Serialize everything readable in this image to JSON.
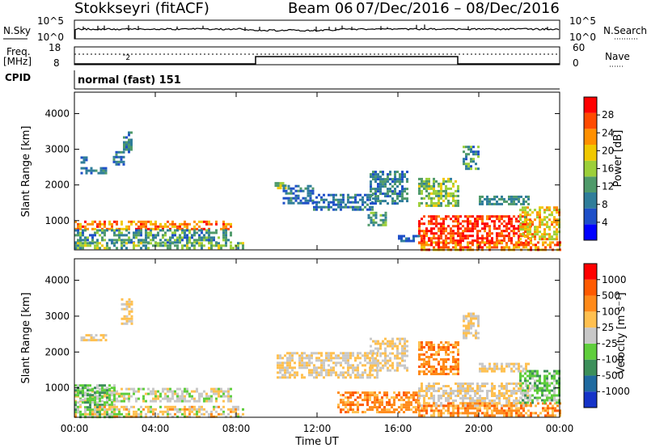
{
  "header": {
    "station": "Stokkseyri (fitACF)",
    "beam": "Beam 06",
    "date_range": "07/Dec/2016 – 08/Dec/2016"
  },
  "mode_label": "normal (fast) 151",
  "noise_panel": {
    "left_label": "N.Sky",
    "right_label": "N.Search",
    "left_ticks": [
      "10^5",
      "10^0"
    ],
    "right_ticks": [
      "10^5",
      "10^0"
    ]
  },
  "freq_panel": {
    "label_line1": "Freq.",
    "label_line2": "[MHz]",
    "cpid_label": "CPID",
    "right_label": "Nave",
    "left_ticks": [
      "18",
      "8"
    ],
    "right_ticks": [
      "60",
      "0"
    ]
  },
  "colors": {
    "power": [
      "#0000ff",
      "#1e4fc8",
      "#2f7d9a",
      "#4f9a6a",
      "#9ccf3a",
      "#f0c800",
      "#ff9000",
      "#ff4a00",
      "#ff0000"
    ],
    "velocity": [
      "#1533c8",
      "#1f6aa0",
      "#3c8f5a",
      "#5fce3c",
      "#c8c8c8",
      "#ffc050",
      "#ff8a1a",
      "#ff5a00",
      "#ff0000"
    ]
  },
  "chart_data": [
    {
      "type": "heatmap",
      "name": "power",
      "ylabel": "Slant Range [km]",
      "colorbar_label": "Power [dB]",
      "colorbar_ticks": [
        "4",
        "8",
        "12",
        "16",
        "20",
        "24",
        "28"
      ],
      "colorbar_range": [
        0,
        32
      ],
      "x_ticks": [
        "00:00",
        "04:00",
        "08:00",
        "12:00",
        "16:00",
        "20:00",
        "00:00"
      ],
      "xlim_hours": [
        0,
        24
      ],
      "y_ticks": [
        "1000",
        "2000",
        "3000",
        "4000"
      ],
      "ylim_km": [
        180,
        4600
      ],
      "regions": [
        {
          "t0": 0.0,
          "t1": 7.7,
          "r0": 760,
          "r1": 1000,
          "v0": 18,
          "v1": 30
        },
        {
          "t0": 0.0,
          "t1": 7.8,
          "r0": 400,
          "r1": 760,
          "v0": 6,
          "v1": 16
        },
        {
          "t0": 0.0,
          "t1": 8.3,
          "r0": 200,
          "r1": 400,
          "v0": 8,
          "v1": 20
        },
        {
          "t0": 0.3,
          "t1": 1.6,
          "r0": 2350,
          "r1": 2500,
          "v0": 6,
          "v1": 12
        },
        {
          "t0": 0.3,
          "t1": 0.6,
          "r0": 2600,
          "r1": 2800,
          "v0": 5,
          "v1": 10
        },
        {
          "t0": 1.9,
          "t1": 2.4,
          "r0": 2550,
          "r1": 2950,
          "v0": 6,
          "v1": 12
        },
        {
          "t0": 2.4,
          "t1": 2.8,
          "r0": 2900,
          "r1": 3500,
          "v0": 6,
          "v1": 13
        },
        {
          "t0": 9.9,
          "t1": 10.4,
          "r0": 1900,
          "r1": 2150,
          "v0": 10,
          "v1": 20
        },
        {
          "t0": 10.3,
          "t1": 11.8,
          "r0": 1500,
          "r1": 2000,
          "v0": 4,
          "v1": 12
        },
        {
          "t0": 11.8,
          "t1": 14.8,
          "r0": 1300,
          "r1": 1750,
          "v0": 4,
          "v1": 12
        },
        {
          "t0": 14.6,
          "t1": 16.5,
          "r0": 1500,
          "r1": 2400,
          "v0": 5,
          "v1": 14
        },
        {
          "t0": 14.5,
          "t1": 15.4,
          "r0": 900,
          "r1": 1250,
          "v0": 8,
          "v1": 16
        },
        {
          "t0": 17.0,
          "t1": 19.0,
          "r0": 1400,
          "r1": 2200,
          "v0": 10,
          "v1": 20
        },
        {
          "t0": 17.0,
          "t1": 22.6,
          "r0": 400,
          "r1": 1150,
          "v0": 24,
          "v1": 32
        },
        {
          "t0": 17.0,
          "t1": 24.0,
          "r0": 200,
          "r1": 420,
          "v0": 18,
          "v1": 30
        },
        {
          "t0": 20.0,
          "t1": 22.5,
          "r0": 1450,
          "r1": 1700,
          "v0": 8,
          "v1": 14
        },
        {
          "t0": 22.0,
          "t1": 24.0,
          "r0": 500,
          "r1": 1400,
          "v0": 14,
          "v1": 26
        },
        {
          "t0": 16.0,
          "t1": 17.0,
          "r0": 400,
          "r1": 600,
          "v0": 4,
          "v1": 10
        },
        {
          "t0": 19.2,
          "t1": 20.0,
          "r0": 2400,
          "r1": 3100,
          "v0": 6,
          "v1": 16
        }
      ]
    },
    {
      "type": "heatmap",
      "name": "velocity",
      "ylabel": "Slant Range [km]",
      "colorbar_label": "Velocity [m s⁻¹]",
      "colorbar_ticks": [
        "-1000",
        "-500",
        "-100",
        "-25",
        "25",
        "100",
        "500",
        "1000"
      ],
      "x_ticks": [
        "00:00",
        "04:00",
        "08:00",
        "12:00",
        "16:00",
        "20:00",
        "00:00"
      ],
      "xlim_hours": [
        0,
        24
      ],
      "xlabel": "Time UT",
      "y_ticks": [
        "1000",
        "2000",
        "3000",
        "4000"
      ],
      "ylim_km": [
        180,
        4600
      ],
      "regions": [
        {
          "t0": 0.0,
          "t1": 7.7,
          "r0": 600,
          "r1": 1000,
          "v0": 3,
          "v1": 5
        },
        {
          "t0": 0.0,
          "t1": 2.0,
          "r0": 200,
          "r1": 1100,
          "v0": 2,
          "v1": 4
        },
        {
          "t0": 0.0,
          "t1": 8.3,
          "r0": 200,
          "r1": 500,
          "v0": 3,
          "v1": 6
        },
        {
          "t0": 0.3,
          "t1": 1.6,
          "r0": 2300,
          "r1": 2500,
          "v0": 4,
          "v1": 5
        },
        {
          "t0": 2.3,
          "t1": 2.8,
          "r0": 2800,
          "r1": 3500,
          "v0": 4,
          "v1": 5
        },
        {
          "t0": 10.0,
          "t1": 15.0,
          "r0": 1300,
          "r1": 2000,
          "v0": 4,
          "v1": 5
        },
        {
          "t0": 14.6,
          "t1": 16.5,
          "r0": 1500,
          "r1": 2400,
          "v0": 4,
          "v1": 5
        },
        {
          "t0": 13.0,
          "t1": 17.0,
          "r0": 300,
          "r1": 900,
          "v0": 5,
          "v1": 7
        },
        {
          "t0": 17.0,
          "t1": 19.0,
          "r0": 1400,
          "r1": 2300,
          "v0": 5,
          "v1": 7
        },
        {
          "t0": 17.0,
          "t1": 22.6,
          "r0": 500,
          "r1": 1150,
          "v0": 4,
          "v1": 5
        },
        {
          "t0": 17.0,
          "t1": 24.0,
          "r0": 200,
          "r1": 600,
          "v0": 5,
          "v1": 7
        },
        {
          "t0": 20.0,
          "t1": 22.5,
          "r0": 1450,
          "r1": 1700,
          "v0": 4,
          "v1": 5
        },
        {
          "t0": 22.0,
          "t1": 24.0,
          "r0": 600,
          "r1": 1500,
          "v0": 2,
          "v1": 4
        },
        {
          "t0": 19.2,
          "t1": 20.0,
          "r0": 2400,
          "r1": 3100,
          "v0": 4,
          "v1": 5
        }
      ]
    }
  ]
}
